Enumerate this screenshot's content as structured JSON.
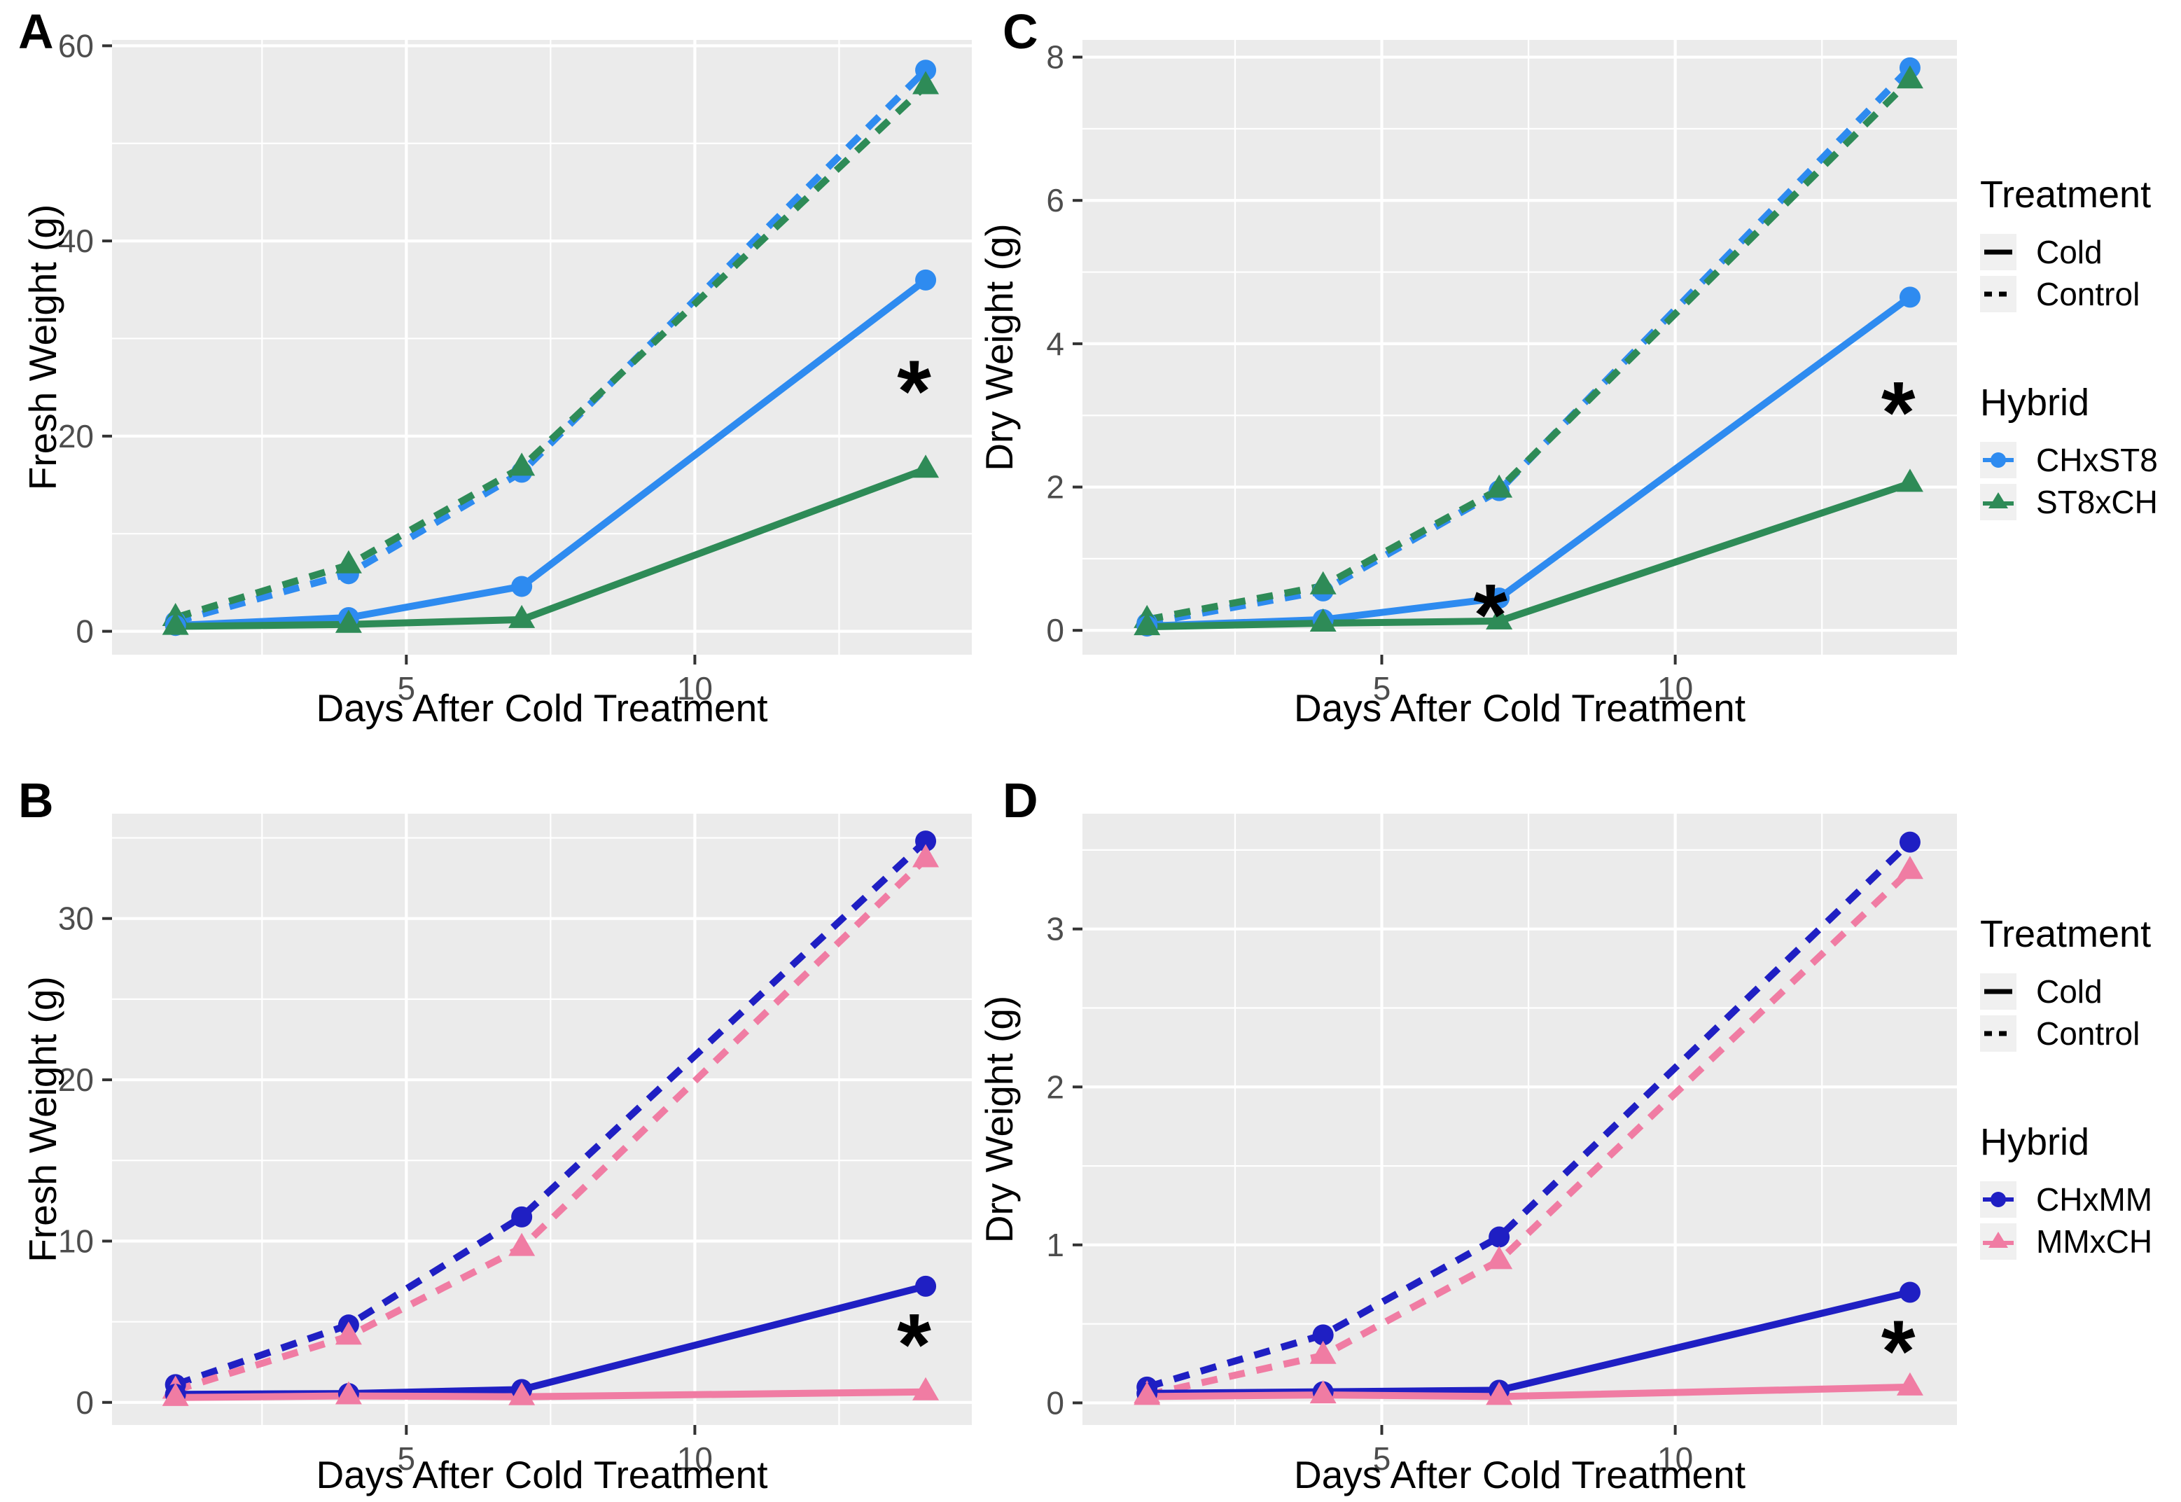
{
  "figure": {
    "background": "#FFFFFF",
    "panel_background": "#EBEBEB",
    "grid_color": "#FFFFFF",
    "tick_mark_color": "#333333",
    "tick_label_color": "#4D4D4D",
    "axis_title_color": "#000000",
    "significance_symbol": "*"
  },
  "chart_data": [
    {
      "panel": "A",
      "type": "line",
      "xlabel": "Days After Cold Treatment",
      "ylabel": "Fresh Weight (g)",
      "x": [
        1,
        4,
        7,
        14
      ],
      "xlim": [
        -0.1,
        14.8
      ],
      "ylim": [
        -2.4,
        60.6
      ],
      "xticks": [
        5,
        10
      ],
      "xminor": [
        2.5,
        7.5,
        12.5
      ],
      "yticks": [
        0,
        20,
        40,
        60
      ],
      "yminor": [
        10,
        30,
        50
      ],
      "grid": true,
      "series": [
        {
          "name": "CHxST8 Control",
          "hybrid": "CHxST8",
          "treatment": "Control",
          "color": "#2E8BF0",
          "dashed": true,
          "marker": "circle",
          "values": [
            1.0,
            5.9,
            16.3,
            57.5
          ]
        },
        {
          "name": "ST8xCH Control",
          "hybrid": "ST8xCH",
          "treatment": "Control",
          "color": "#2E8B57",
          "dashed": true,
          "marker": "triangle",
          "values": [
            1.4,
            6.8,
            16.8,
            55.9
          ]
        },
        {
          "name": "CHxST8 Cold",
          "hybrid": "CHxST8",
          "treatment": "Cold",
          "color": "#2E8BF0",
          "dashed": false,
          "marker": "circle",
          "values": [
            0.6,
            1.4,
            4.6,
            36.0
          ]
        },
        {
          "name": "ST8xCH Cold",
          "hybrid": "ST8xCH",
          "treatment": "Cold",
          "color": "#2E8B57",
          "dashed": false,
          "marker": "triangle",
          "values": [
            0.5,
            0.7,
            1.2,
            16.6
          ]
        }
      ],
      "annotations": [
        {
          "x": 13.8,
          "y": 25.8,
          "text": "*"
        }
      ]
    },
    {
      "panel": "C",
      "type": "line",
      "xlabel": "Days After Cold Treatment",
      "ylabel": "Dry Weight (g)",
      "x": [
        1,
        4,
        7,
        14
      ],
      "xlim": [
        -0.1,
        14.8
      ],
      "ylim": [
        -0.34,
        8.24
      ],
      "xticks": [
        5,
        10
      ],
      "xminor": [
        2.5,
        7.5,
        12.5
      ],
      "yticks": [
        0,
        2,
        4,
        6,
        8
      ],
      "yminor": [
        1,
        3,
        5,
        7
      ],
      "grid": true,
      "series": [
        {
          "name": "CHxST8 Control",
          "hybrid": "CHxST8",
          "treatment": "Control",
          "color": "#2E8BF0",
          "dashed": true,
          "marker": "circle",
          "values": [
            0.1,
            0.55,
            1.95,
            7.85
          ]
        },
        {
          "name": "ST8xCH Control",
          "hybrid": "ST8xCH",
          "treatment": "Control",
          "color": "#2E8B57",
          "dashed": true,
          "marker": "triangle",
          "values": [
            0.15,
            0.62,
            1.97,
            7.68
          ]
        },
        {
          "name": "CHxST8 Cold",
          "hybrid": "CHxST8",
          "treatment": "Cold",
          "color": "#2E8BF0",
          "dashed": false,
          "marker": "circle",
          "values": [
            0.06,
            0.15,
            0.45,
            4.65
          ]
        },
        {
          "name": "ST8xCH Cold",
          "hybrid": "ST8xCH",
          "treatment": "Cold",
          "color": "#2E8B57",
          "dashed": false,
          "marker": "triangle",
          "values": [
            0.05,
            0.1,
            0.13,
            2.05
          ]
        }
      ],
      "annotations": [
        {
          "x": 6.85,
          "y": 0.38,
          "text": "*"
        },
        {
          "x": 13.8,
          "y": 3.2,
          "text": "*"
        }
      ]
    },
    {
      "panel": "B",
      "type": "line",
      "xlabel": "Days After Cold Treatment",
      "ylabel": "Fresh Weight (g)",
      "x": [
        1,
        4,
        7,
        14
      ],
      "xlim": [
        -0.1,
        14.8
      ],
      "ylim": [
        -1.4,
        36.5
      ],
      "xticks": [
        5,
        10
      ],
      "xminor": [
        2.5,
        7.5,
        12.5
      ],
      "yticks": [
        0,
        10,
        20,
        30
      ],
      "yminor": [
        5,
        15,
        25,
        35
      ],
      "grid": true,
      "series": [
        {
          "name": "CHxMM Control",
          "hybrid": "CHxMM",
          "treatment": "Control",
          "color": "#1F1FC3",
          "dashed": true,
          "marker": "circle",
          "values": [
            1.1,
            4.8,
            11.5,
            34.8
          ]
        },
        {
          "name": "MMxCH Control",
          "hybrid": "MMxCH",
          "treatment": "Control",
          "color": "#F07CA3",
          "dashed": true,
          "marker": "triangle",
          "values": [
            0.75,
            4.1,
            9.6,
            33.7
          ]
        },
        {
          "name": "CHxMM Cold",
          "hybrid": "CHxMM",
          "treatment": "Cold",
          "color": "#1F1FC3",
          "dashed": false,
          "marker": "circle",
          "values": [
            0.5,
            0.55,
            0.8,
            7.2
          ]
        },
        {
          "name": "MMxCH Cold",
          "hybrid": "MMxCH",
          "treatment": "Cold",
          "color": "#F07CA3",
          "dashed": false,
          "marker": "triangle",
          "values": [
            0.3,
            0.4,
            0.35,
            0.65
          ]
        }
      ],
      "annotations": [
        {
          "x": 13.8,
          "y": 4.3,
          "text": "*"
        }
      ]
    },
    {
      "panel": "D",
      "type": "line",
      "xlabel": "Days After Cold Treatment",
      "ylabel": "Dry Weight (g)",
      "x": [
        1,
        4,
        7,
        14
      ],
      "xlim": [
        -0.1,
        14.8
      ],
      "ylim": [
        -0.14,
        3.73
      ],
      "xticks": [
        5,
        10
      ],
      "xminor": [
        2.5,
        7.5,
        12.5
      ],
      "yticks": [
        0,
        1,
        2,
        3
      ],
      "yminor": [
        0.5,
        1.5,
        2.5,
        3.5
      ],
      "grid": true,
      "series": [
        {
          "name": "CHxMM Control",
          "hybrid": "CHxMM",
          "treatment": "Control",
          "color": "#1F1FC3",
          "dashed": true,
          "marker": "circle",
          "values": [
            0.1,
            0.43,
            1.05,
            3.55
          ]
        },
        {
          "name": "MMxCH Control",
          "hybrid": "MMxCH",
          "treatment": "Control",
          "color": "#F07CA3",
          "dashed": true,
          "marker": "triangle",
          "values": [
            0.05,
            0.3,
            0.9,
            3.37
          ]
        },
        {
          "name": "CHxMM Cold",
          "hybrid": "CHxMM",
          "treatment": "Cold",
          "color": "#1F1FC3",
          "dashed": false,
          "marker": "circle",
          "values": [
            0.06,
            0.07,
            0.08,
            0.7
          ]
        },
        {
          "name": "MMxCH Cold",
          "hybrid": "MMxCH",
          "treatment": "Cold",
          "color": "#F07CA3",
          "dashed": false,
          "marker": "triangle",
          "values": [
            0.04,
            0.05,
            0.04,
            0.1
          ]
        }
      ],
      "annotations": [
        {
          "x": 13.8,
          "y": 0.4,
          "text": "*"
        }
      ]
    }
  ],
  "legends": [
    {
      "treatment_title": "Treatment",
      "treatment_items": [
        {
          "label": "Cold",
          "style": "solid"
        },
        {
          "label": "Control",
          "style": "dashed"
        }
      ],
      "hybrid_title": "Hybrid",
      "hybrid_items": [
        {
          "label": "CHxST8",
          "color": "#2E8BF0",
          "marker": "circle"
        },
        {
          "label": "ST8xCH",
          "color": "#2E8B57",
          "marker": "triangle"
        }
      ]
    },
    {
      "treatment_title": "Treatment",
      "treatment_items": [
        {
          "label": "Cold",
          "style": "solid"
        },
        {
          "label": "Control",
          "style": "dashed"
        }
      ],
      "hybrid_title": "Hybrid",
      "hybrid_items": [
        {
          "label": "CHxMM",
          "color": "#1F1FC3",
          "marker": "circle"
        },
        {
          "label": "MMxCH",
          "color": "#F07CA3",
          "marker": "triangle"
        }
      ]
    }
  ]
}
